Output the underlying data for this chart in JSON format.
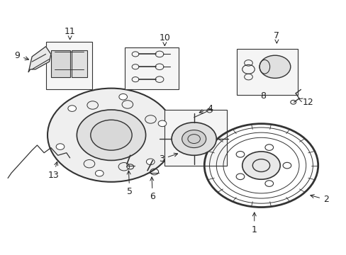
{
  "title": "",
  "bg_color": "#ffffff",
  "fig_width": 4.89,
  "fig_height": 3.6,
  "dpi": 100,
  "line_color": "#333333",
  "text_color": "#222222",
  "font_size": 9
}
